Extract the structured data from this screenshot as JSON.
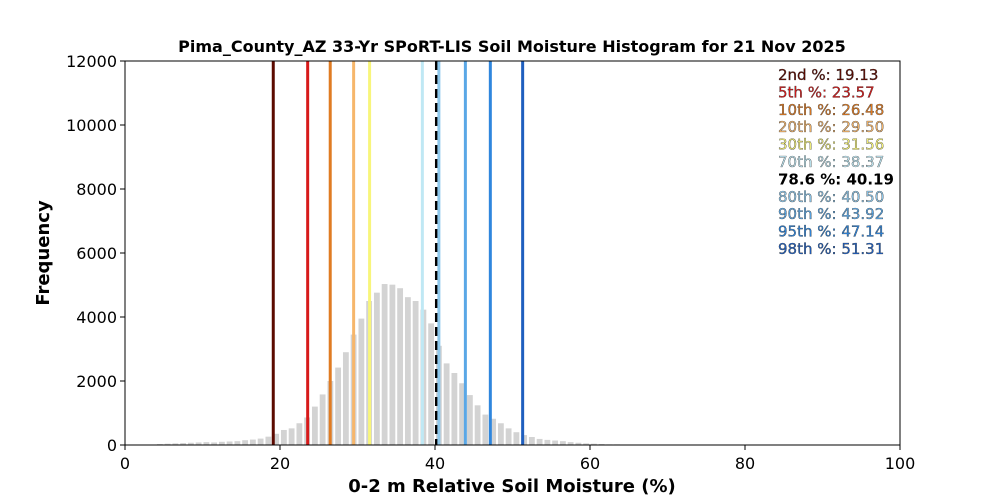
{
  "chart_data": {
    "type": "bar",
    "title": "Pima_County_AZ 33-Yr SPoRT-LIS Soil Moisture Histogram for 21 Nov 2025",
    "xlabel": "0-2 m Relative Soil Moisture (%)",
    "ylabel": "Frequency",
    "xlim": [
      0,
      100
    ],
    "ylim": [
      0,
      12000
    ],
    "xticks": [
      0,
      20,
      40,
      60,
      80,
      100
    ],
    "yticks": [
      0,
      2000,
      4000,
      6000,
      8000,
      10000,
      12000
    ],
    "bar_color": "#d3d3d3",
    "histogram": {
      "x": [
        4.5,
        5.5,
        6.5,
        7.5,
        8.5,
        9.5,
        10.5,
        11.5,
        12.5,
        13.5,
        14.5,
        15.5,
        16.5,
        17.5,
        18.5,
        19.5,
        20.5,
        21.5,
        22.5,
        23.5,
        24.5,
        25.5,
        26.5,
        27.5,
        28.5,
        29.5,
        30.5,
        31.5,
        32.5,
        33.5,
        34.5,
        35.5,
        36.5,
        37.5,
        38.5,
        39.5,
        40.5,
        41.5,
        42.5,
        43.5,
        44.5,
        45.5,
        46.5,
        47.5,
        48.5,
        49.5,
        50.5,
        51.5,
        52.5,
        53.5,
        54.5,
        55.5,
        56.5,
        57.5,
        58.5,
        59.5,
        60.5,
        61.5,
        62.5,
        63.5,
        64.5,
        65.5
      ],
      "values": [
        30,
        40,
        50,
        60,
        70,
        80,
        90,
        80,
        100,
        110,
        120,
        150,
        170,
        200,
        260,
        350,
        470,
        520,
        680,
        860,
        1200,
        1580,
        2000,
        2420,
        2900,
        3450,
        3950,
        4500,
        4760,
        5030,
        5010,
        4900,
        4620,
        4500,
        4230,
        3800,
        3100,
        2550,
        2250,
        1930,
        1560,
        1240,
        950,
        820,
        680,
        520,
        400,
        310,
        250,
        190,
        160,
        140,
        120,
        90,
        70,
        50,
        40,
        30,
        20,
        20,
        10,
        10
      ]
    },
    "percentiles": [
      {
        "label": "2nd %",
        "value": 19.13,
        "text": "2nd %: 19.13",
        "color": "#5c0a00"
      },
      {
        "label": "5th %",
        "value": 23.57,
        "text": "5th %: 23.57",
        "color": "#d71a1a"
      },
      {
        "label": "10th %",
        "value": 26.48,
        "text": "10th %: 26.48",
        "color": "#e07b22"
      },
      {
        "label": "20th %",
        "value": 29.5,
        "text": "20th %: 29.50",
        "color": "#f6b66b"
      },
      {
        "label": "30th %",
        "value": 31.56,
        "text": "30th %: 31.56",
        "color": "#f8f57b"
      },
      {
        "label": "70th %",
        "value": 38.37,
        "text": "70th %: 38.37",
        "color": "#bfe8f4"
      },
      {
        "label": "78.6 %",
        "value": 40.19,
        "text": "78.6 %: 40.19",
        "color": "#000000",
        "dashed": true,
        "bold": true
      },
      {
        "label": "80th %",
        "value": 40.5,
        "text": "80th %: 40.50",
        "color": "#8ec8ec"
      },
      {
        "label": "90th %",
        "value": 43.92,
        "text": "90th %: 43.92",
        "color": "#5aa7e6"
      },
      {
        "label": "95th %",
        "value": 47.14,
        "text": "95th %: 47.14",
        "color": "#2f86dd"
      },
      {
        "label": "98th %",
        "value": 51.31,
        "text": "98th %: 51.31",
        "color": "#1f5fbf"
      }
    ],
    "legend_placement": "top-right",
    "grid": false
  }
}
